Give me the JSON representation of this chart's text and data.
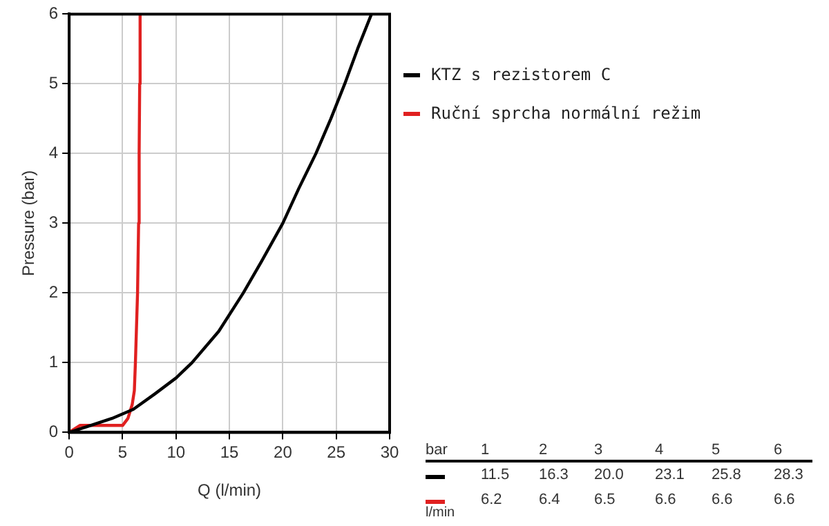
{
  "chart_data": {
    "type": "line",
    "xlabel": "Q (l/min)",
    "ylabel": "Pressure (bar)",
    "xlim": [
      0,
      30
    ],
    "xticks": [
      0,
      5,
      10,
      15,
      20,
      25,
      30
    ],
    "ylim": [
      0,
      6
    ],
    "yticks": [
      0,
      1,
      2,
      3,
      4,
      5,
      6
    ],
    "grid": true,
    "legend": "right",
    "marker": "none",
    "line_style": "solid",
    "series": [
      {
        "name": "KTZ s rezistorem C",
        "color": "#000000",
        "x": [
          0,
          1,
          2,
          4,
          6,
          8,
          10,
          11.5,
          14,
          16.3,
          18,
          20,
          21.5,
          23.1,
          24.5,
          25.8,
          27,
          28.3
        ],
        "values": [
          0,
          0.05,
          0.1,
          0.2,
          0.33,
          0.55,
          0.78,
          1,
          1.45,
          2,
          2.45,
          3,
          3.5,
          4,
          4.5,
          5,
          5.5,
          6
        ]
      },
      {
        "name": "Ruční sprcha normální režim",
        "color": "#e02020",
        "x": [
          0,
          0.5,
          1,
          5,
          5.5,
          5.9,
          6.1,
          6.2,
          6.4,
          6.5,
          6.55,
          6.6,
          6.64
        ],
        "values": [
          0,
          0.05,
          0.1,
          0.1,
          0.2,
          0.4,
          0.6,
          1,
          2,
          3,
          4,
          5,
          6
        ]
      }
    ],
    "annotations": [
      "bar",
      "1",
      "2",
      "3",
      "4",
      "5",
      "6",
      "11.5",
      "16.3",
      "20.0",
      "23.1",
      "25.8",
      "28.3",
      "6.2",
      "6.4",
      "6.5",
      "6.6",
      "6.6",
      "6.6",
      "l/min"
    ]
  }
}
